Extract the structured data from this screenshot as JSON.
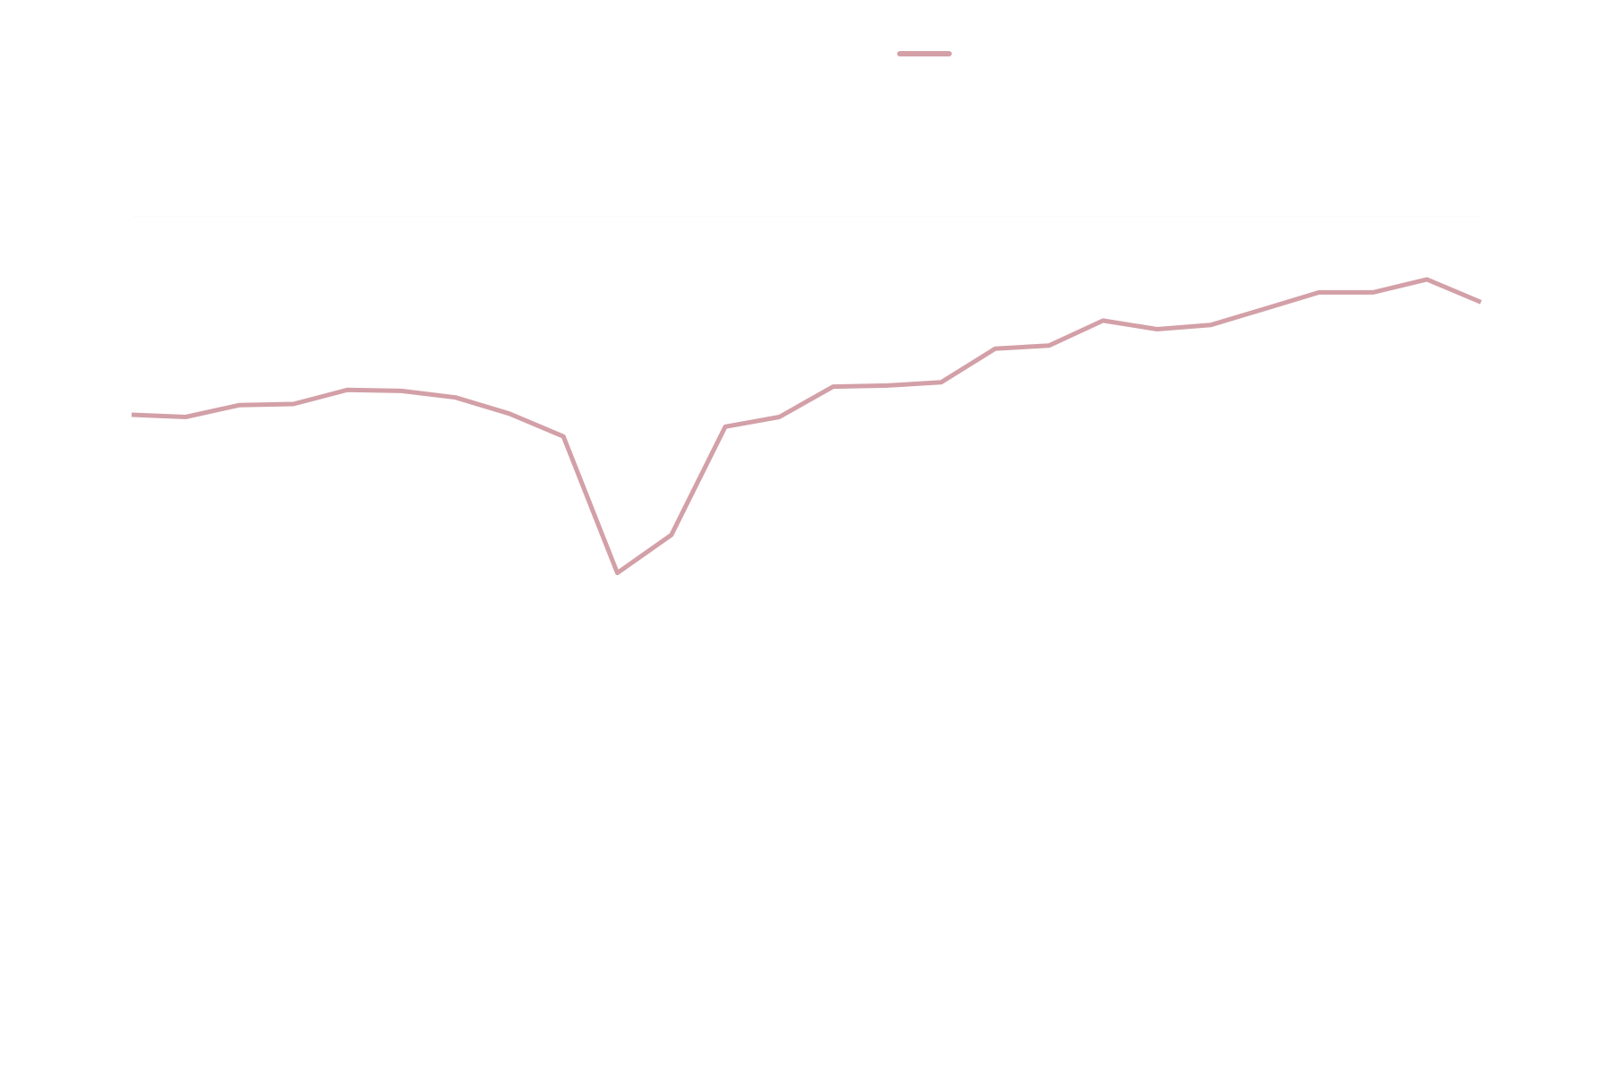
{
  "chart_data": {
    "type": "line",
    "title": "",
    "xlabel": "",
    "ylabel": "",
    "grid": false,
    "legend": {
      "placement": "top-center"
    },
    "colors": {
      "background": "#ffffff",
      "series_line": "#d3a0a8",
      "faint_gridline": "#fbfbfb"
    },
    "x": [
      1,
      2,
      3,
      4,
      5,
      6,
      7,
      8,
      9,
      10,
      11,
      12,
      13,
      14,
      15,
      16,
      17,
      18,
      19,
      20,
      21,
      22,
      23,
      24,
      25,
      26
    ],
    "xlim": [
      1,
      26
    ],
    "ylim": [
      0,
      100
    ],
    "reference_line_y": 80,
    "series": [
      {
        "values": [
          61.7,
          61.5,
          62.6,
          62.7,
          64.0,
          63.9,
          63.3,
          61.8,
          59.7,
          47.1,
          50.6,
          60.6,
          61.5,
          64.3,
          64.4,
          64.7,
          67.8,
          68.1,
          70.4,
          69.6,
          70.0,
          71.5,
          73.0,
          73.0,
          74.2,
          72.1
        ]
      }
    ]
  }
}
